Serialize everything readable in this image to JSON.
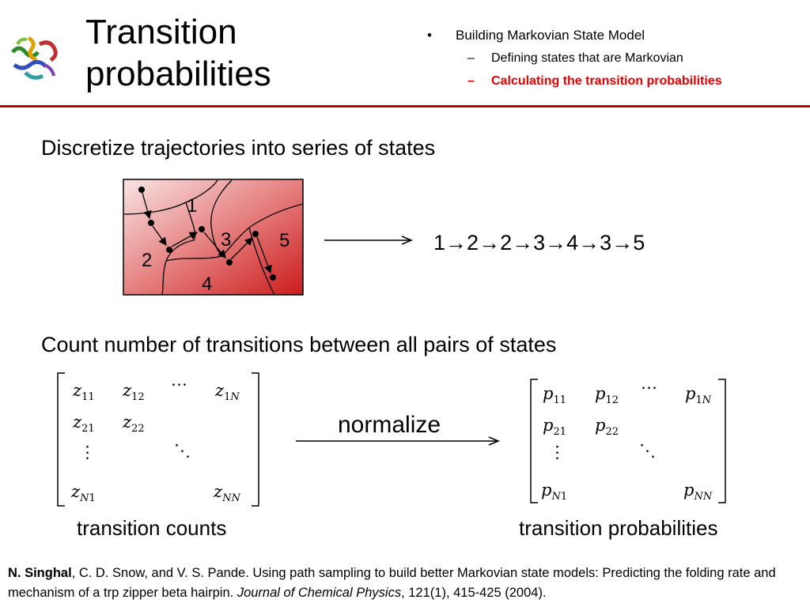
{
  "slide": {
    "title_line1": "Transition",
    "title_line2": "probabilities",
    "outline": [
      {
        "level": 1,
        "text": "Building Markovian State Model",
        "active": false
      },
      {
        "level": 2,
        "text": "Defining states that are Markovian",
        "active": false
      },
      {
        "level": 2,
        "text": "Calculating the transition probabilities",
        "active": true
      }
    ],
    "outline_dash": "–",
    "active_color": "#e00000",
    "rule_color": "#c00000",
    "logo_icon": "protein-ribbon-icon"
  },
  "section1": {
    "heading": "Discretize trajectories into series of states",
    "state_labels": [
      "1",
      "2",
      "3",
      "4",
      "5"
    ],
    "sequence_states": [
      "1",
      "2",
      "2",
      "3",
      "4",
      "3",
      "5"
    ],
    "sequence_arrow": "→",
    "gradient_colors": [
      "#f8e4e4",
      "#cc1c1c"
    ]
  },
  "section2": {
    "heading": "Count number of transitions between all pairs of states",
    "left_matrix": {
      "symbol": "z",
      "entries": [
        {
          "sub": "11"
        },
        {
          "sub": "12"
        },
        {
          "sub": "1",
          "subN": "N"
        },
        {
          "sub": "21"
        },
        {
          "sub": "22"
        },
        {
          "sub": "",
          "subN": "N",
          "sub2": "1"
        },
        {
          "sub": "",
          "subN": "NN"
        }
      ],
      "caption": "transition counts"
    },
    "arrow_label": "normalize",
    "right_matrix": {
      "symbol": "p",
      "caption": "transition probabilities"
    },
    "ellipsis_h": "⋯",
    "ellipsis_v": "⋮",
    "ellipsis_d": "⋱"
  },
  "reference": {
    "author_bold": "N. Singhal",
    "text1": ", C. D. Snow, and V. S. Pande. Using path sampling to build better Markovian state models: Predicting the folding rate and mechanism of a trp zipper beta hairpin. ",
    "journal": "Journal of Chemical Physics",
    "text2": ", 121(1), 415-425 (2004)."
  }
}
